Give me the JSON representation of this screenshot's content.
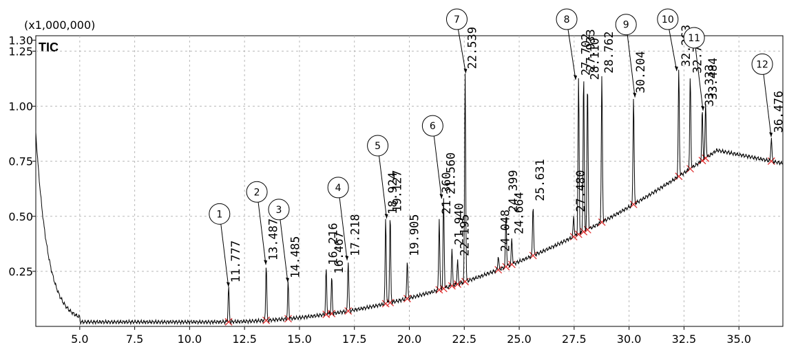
{
  "chart_data": {
    "type": "line",
    "scale_label": "(x1,000,000)",
    "series_label": "TIC",
    "xlim": [
      3.0,
      37.0
    ],
    "ylim": [
      0.0,
      1.32
    ],
    "x_ticks": [
      "5.0",
      "7.5",
      "10.0",
      "12.5",
      "15.0",
      "17.5",
      "20.0",
      "22.5",
      "25.0",
      "27.5",
      "30.0",
      "32.5",
      "35.0"
    ],
    "y_ticks": [
      "0.25",
      "0.50",
      "0.75",
      "1.00",
      "1.25",
      "1.30"
    ],
    "peaks": [
      {
        "rt": 11.777,
        "label": "11.777",
        "height": 0.18
      },
      {
        "rt": 13.487,
        "label": "13.487",
        "height": 0.28
      },
      {
        "rt": 14.485,
        "label": "14.485",
        "height": 0.2
      },
      {
        "rt": 16.216,
        "label": "16.216",
        "height": 0.26
      },
      {
        "rt": 16.467,
        "label": "16.467",
        "height": 0.22
      },
      {
        "rt": 17.218,
        "label": "17.218",
        "height": 0.3
      },
      {
        "rt": 18.924,
        "label": "18.924",
        "height": 0.49
      },
      {
        "rt": 19.127,
        "label": "19.127",
        "height": 0.5
      },
      {
        "rt": 19.905,
        "label": "19.905",
        "height": 0.3
      },
      {
        "rt": 21.36,
        "label": "21.360",
        "height": 0.49
      },
      {
        "rt": 21.56,
        "label": "21.560",
        "height": 0.58
      },
      {
        "rt": 21.94,
        "label": "21.940",
        "height": 0.35
      },
      {
        "rt": 22.195,
        "label": "22.195",
        "height": 0.3
      },
      {
        "rt": 22.539,
        "label": "22.539",
        "height": 1.15
      },
      {
        "rt": 24.048,
        "label": "24.048",
        "height": 0.32
      },
      {
        "rt": 24.399,
        "label": "24.399",
        "height": 0.5
      },
      {
        "rt": 24.664,
        "label": "24.664",
        "height": 0.4
      },
      {
        "rt": 25.631,
        "label": "25.631",
        "height": 0.55
      },
      {
        "rt": 27.48,
        "label": "27.480",
        "height": 0.5
      },
      {
        "rt": 27.702,
        "label": "27.702",
        "height": 1.12
      },
      {
        "rt": 28.11,
        "label": "28.110",
        "height": 1.1
      },
      {
        "rt": 27.933,
        "label": "27.933",
        "height": 1.14
      },
      {
        "rt": 28.762,
        "label": "28.762",
        "height": 1.13
      },
      {
        "rt": 30.204,
        "label": "30.204",
        "height": 1.04
      },
      {
        "rt": 32.263,
        "label": "32.263",
        "height": 1.16
      },
      {
        "rt": 32.785,
        "label": "32.785",
        "height": 1.13
      },
      {
        "rt": 33.333,
        "label": "33.333",
        "height": 0.98
      },
      {
        "rt": 33.484,
        "label": "33.484",
        "height": 1.01
      },
      {
        "rt": 36.476,
        "label": "36.476",
        "height": 0.86
      }
    ],
    "callouts": [
      {
        "label": "1",
        "rt": 11.8
      },
      {
        "label": "2",
        "rt": 13.5
      },
      {
        "label": "3",
        "rt": 14.5
      },
      {
        "label": "4",
        "rt": 17.2
      },
      {
        "label": "5",
        "rt": 19.0
      },
      {
        "label": "6",
        "rt": 21.5
      },
      {
        "label": "7",
        "rt": 22.6
      },
      {
        "label": "8",
        "rt": 27.6
      },
      {
        "label": "9",
        "rt": 30.3
      },
      {
        "label": "10",
        "rt": 32.2
      },
      {
        "label": "11",
        "rt": 33.4
      },
      {
        "label": "12",
        "rt": 36.5
      }
    ]
  }
}
